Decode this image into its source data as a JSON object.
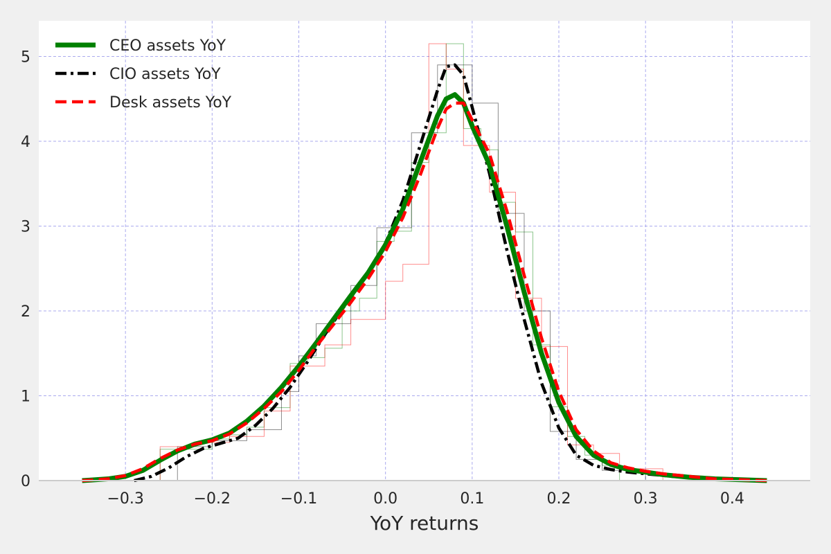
{
  "chart_data": {
    "type": "line",
    "title": "",
    "xlabel": "YoY returns",
    "ylabel": "",
    "xlim": [
      -0.4,
      0.49
    ],
    "ylim": [
      0,
      5.42
    ],
    "x_ticks": [
      -0.3,
      -0.2,
      -0.1,
      0.0,
      0.1,
      0.2,
      0.3,
      0.4
    ],
    "x_tick_labels": [
      "−0.3",
      "−0.2",
      "−0.1",
      "0.0",
      "0.1",
      "0.2",
      "0.3",
      "0.4"
    ],
    "y_ticks": [
      0,
      1,
      2,
      3,
      4,
      5
    ],
    "y_tick_labels": [
      "0",
      "1",
      "2",
      "3",
      "4",
      "5"
    ],
    "grid": true,
    "grid_color": "#aaaaee",
    "background": "#ffffff",
    "legend_position": "top-left",
    "series": [
      {
        "name": "CEO assets YoY",
        "color": "#008000",
        "style": "solid",
        "kde": {
          "x": [
            -0.35,
            -0.32,
            -0.3,
            -0.28,
            -0.26,
            -0.24,
            -0.22,
            -0.2,
            -0.18,
            -0.16,
            -0.14,
            -0.12,
            -0.1,
            -0.08,
            -0.06,
            -0.04,
            -0.02,
            0.0,
            0.02,
            0.04,
            0.06,
            0.07,
            0.08,
            0.09,
            0.1,
            0.12,
            0.14,
            0.16,
            0.18,
            0.2,
            0.22,
            0.24,
            0.26,
            0.28,
            0.3,
            0.32,
            0.35,
            0.38,
            0.41,
            0.44
          ],
          "y": [
            0.0,
            0.02,
            0.05,
            0.12,
            0.24,
            0.35,
            0.43,
            0.48,
            0.56,
            0.7,
            0.88,
            1.1,
            1.35,
            1.62,
            1.9,
            2.18,
            2.45,
            2.78,
            3.2,
            3.75,
            4.3,
            4.5,
            4.55,
            4.45,
            4.18,
            3.72,
            3.0,
            2.22,
            1.5,
            0.92,
            0.52,
            0.3,
            0.19,
            0.13,
            0.1,
            0.07,
            0.04,
            0.02,
            0.01,
            0.0
          ]
        },
        "hist": {
          "edges": [
            -0.26,
            -0.2,
            -0.18,
            -0.16,
            -0.14,
            -0.11,
            -0.09,
            -0.07,
            -0.05,
            -0.03,
            -0.01,
            0.01,
            0.03,
            0.05,
            0.07,
            0.09,
            0.11,
            0.13,
            0.15,
            0.17,
            0.19,
            0.21,
            0.23,
            0.25,
            0.27
          ],
          "values": [
            0.37,
            0.49,
            0.54,
            0.63,
            0.86,
            1.38,
            1.45,
            1.56,
            2.0,
            2.15,
            2.82,
            2.94,
            3.75,
            4.1,
            5.15,
            4.15,
            3.9,
            3.28,
            2.93,
            1.6,
            0.87,
            0.52,
            0.3,
            0.18
          ]
        }
      },
      {
        "name": "CIO assets YoY",
        "color": "#000000",
        "style": "dash-dot",
        "kde": {
          "x": [
            -0.29,
            -0.27,
            -0.25,
            -0.23,
            -0.21,
            -0.19,
            -0.17,
            -0.15,
            -0.13,
            -0.11,
            -0.09,
            -0.07,
            -0.05,
            -0.03,
            -0.01,
            0.0,
            0.02,
            0.04,
            0.06,
            0.07,
            0.08,
            0.09,
            0.1,
            0.12,
            0.14,
            0.16,
            0.18,
            0.2,
            0.22,
            0.24,
            0.26,
            0.28,
            0.3,
            0.33,
            0.36,
            0.39,
            0.42
          ],
          "y": [
            0.0,
            0.05,
            0.15,
            0.28,
            0.38,
            0.44,
            0.5,
            0.65,
            0.85,
            1.1,
            1.4,
            1.72,
            2.02,
            2.3,
            2.6,
            2.8,
            3.3,
            3.95,
            4.6,
            4.88,
            4.9,
            4.78,
            4.4,
            3.62,
            2.72,
            1.9,
            1.15,
            0.62,
            0.3,
            0.18,
            0.13,
            0.1,
            0.08,
            0.05,
            0.03,
            0.01,
            0.0
          ]
        },
        "hist": {
          "edges": [
            -0.24,
            -0.2,
            -0.16,
            -0.12,
            -0.1,
            -0.08,
            -0.04,
            -0.01,
            0.03,
            0.06,
            0.1,
            0.13,
            0.16,
            0.19,
            0.22,
            0.25,
            0.3
          ],
          "values": [
            0.4,
            0.47,
            0.6,
            1.05,
            1.47,
            1.85,
            2.3,
            2.98,
            4.1,
            4.9,
            4.45,
            3.15,
            2.0,
            0.58,
            0.25,
            0.12
          ]
        }
      },
      {
        "name": "Desk assets YoY",
        "color": "#ff0000",
        "style": "dashed",
        "kde": {
          "x": [
            -0.35,
            -0.32,
            -0.3,
            -0.28,
            -0.26,
            -0.24,
            -0.22,
            -0.2,
            -0.18,
            -0.16,
            -0.14,
            -0.12,
            -0.1,
            -0.08,
            -0.06,
            -0.04,
            -0.02,
            0.0,
            0.02,
            0.04,
            0.06,
            0.07,
            0.08,
            0.09,
            0.1,
            0.12,
            0.14,
            0.16,
            0.18,
            0.2,
            0.22,
            0.24,
            0.26,
            0.28,
            0.3,
            0.32,
            0.35,
            0.38,
            0.41,
            0.44
          ],
          "y": [
            0.0,
            0.02,
            0.06,
            0.14,
            0.26,
            0.36,
            0.43,
            0.47,
            0.55,
            0.68,
            0.85,
            1.05,
            1.3,
            1.58,
            1.84,
            2.1,
            2.38,
            2.7,
            3.1,
            3.6,
            4.15,
            4.38,
            4.45,
            4.45,
            4.25,
            3.85,
            3.18,
            2.42,
            1.68,
            1.05,
            0.6,
            0.35,
            0.21,
            0.15,
            0.11,
            0.08,
            0.05,
            0.02,
            0.01,
            0.0
          ]
        },
        "hist": {
          "edges": [
            -0.26,
            -0.22,
            -0.18,
            -0.14,
            -0.11,
            -0.07,
            -0.04,
            0.0,
            0.02,
            0.05,
            0.07,
            0.09,
            0.12,
            0.15,
            0.18,
            0.21,
            0.24,
            0.27,
            0.32
          ],
          "values": [
            0.4,
            0.45,
            0.52,
            0.82,
            1.35,
            1.6,
            1.9,
            2.35,
            2.55,
            5.15,
            4.85,
            3.95,
            3.4,
            2.15,
            1.58,
            0.42,
            0.32,
            0.14
          ]
        }
      }
    ]
  }
}
